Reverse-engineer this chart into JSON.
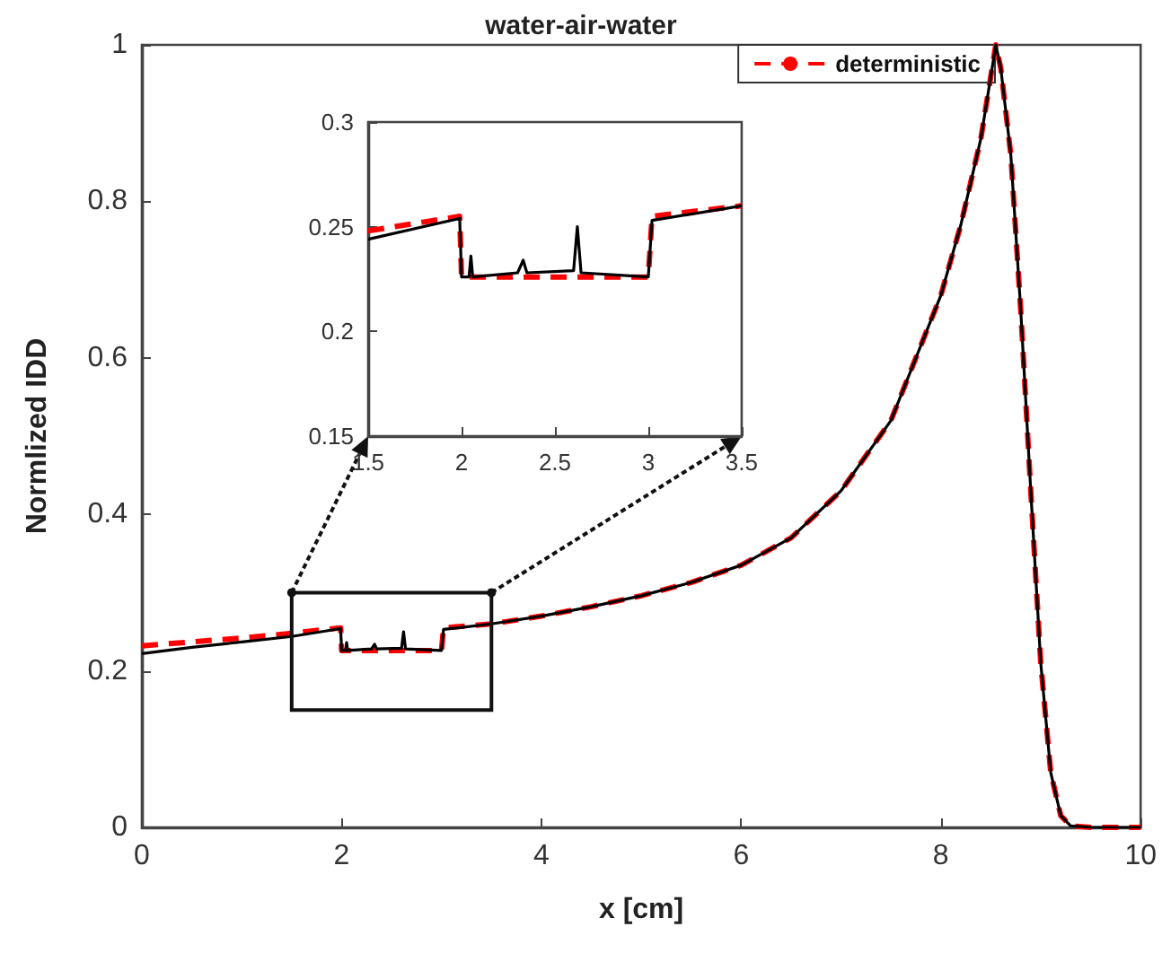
{
  "chart_data": [
    {
      "type": "line",
      "title": "water-air-water",
      "xlabel": "x [cm]",
      "ylabel": "Normlized IDD",
      "xlim": [
        0,
        10
      ],
      "xticks": [
        0,
        2,
        4,
        6,
        8,
        10
      ],
      "ylim": [
        0,
        1
      ],
      "yticks": [
        0,
        0.2,
        0.4,
        0.6,
        0.8,
        1
      ],
      "grid": false,
      "legend": "top right",
      "series": [
        {
          "color": "#000000",
          "line_style": "solid",
          "x": [
            0,
            0.5,
            1,
            1.5,
            1.99,
            2.0,
            2.04,
            2.05,
            2.06,
            2.3,
            2.33,
            2.35,
            2.6,
            2.62,
            2.64,
            3.0,
            3.02,
            3.5,
            4,
            4.5,
            5,
            5.5,
            6,
            6.5,
            7,
            7.5,
            8,
            8.2,
            8.4,
            8.5,
            8.55,
            8.6,
            8.7,
            8.8,
            8.9,
            9.0,
            9.1,
            9.2,
            9.3,
            9.5,
            10
          ],
          "values": [
            0.222,
            0.23,
            0.237,
            0.244,
            0.254,
            0.226,
            0.226,
            0.236,
            0.226,
            0.228,
            0.234,
            0.228,
            0.229,
            0.25,
            0.228,
            0.226,
            0.253,
            0.26,
            0.27,
            0.282,
            0.296,
            0.313,
            0.335,
            0.37,
            0.43,
            0.52,
            0.68,
            0.77,
            0.88,
            0.96,
            1.0,
            0.97,
            0.86,
            0.66,
            0.43,
            0.21,
            0.07,
            0.015,
            0.002,
            0,
            0
          ]
        },
        {
          "name": "deterministic",
          "color": "#ff0000",
          "line_style": "dashed",
          "x": [
            0,
            0.5,
            1,
            1.5,
            1.99,
            2.0,
            3.0,
            3.02,
            3.5,
            4,
            4.5,
            5,
            5.5,
            6,
            6.5,
            7,
            7.5,
            8,
            8.2,
            8.4,
            8.5,
            8.55,
            8.6,
            8.7,
            8.8,
            8.9,
            9.0,
            9.1,
            9.2,
            9.3,
            9.5,
            10
          ],
          "values": [
            0.232,
            0.237,
            0.242,
            0.248,
            0.255,
            0.226,
            0.226,
            0.255,
            0.26,
            0.27,
            0.282,
            0.296,
            0.313,
            0.335,
            0.37,
            0.43,
            0.52,
            0.68,
            0.77,
            0.88,
            0.96,
            1.0,
            0.97,
            0.86,
            0.66,
            0.43,
            0.21,
            0.07,
            0.015,
            0.002,
            0,
            0
          ]
        }
      ]
    },
    {
      "type": "line",
      "xlim": [
        1.5,
        3.5
      ],
      "xticks": [
        1.5,
        2,
        2.5,
        3,
        3.5
      ],
      "ylim": [
        0.15,
        0.3
      ],
      "yticks": [
        0.15,
        0.2,
        0.25,
        0.3
      ],
      "grid": false,
      "series": [
        {
          "color": "#000000",
          "line_style": "solid",
          "x": [
            1.5,
            1.99,
            2.0,
            2.04,
            2.05,
            2.06,
            2.3,
            2.33,
            2.35,
            2.6,
            2.62,
            2.64,
            3.0,
            3.02,
            3.5
          ],
          "values": [
            0.244,
            0.254,
            0.226,
            0.226,
            0.236,
            0.226,
            0.228,
            0.234,
            0.228,
            0.229,
            0.25,
            0.228,
            0.226,
            0.253,
            0.26
          ]
        },
        {
          "color": "#ff0000",
          "line_style": "dashed",
          "x": [
            1.5,
            1.99,
            2.0,
            3.0,
            3.02,
            3.5
          ],
          "values": [
            0.248,
            0.255,
            0.226,
            0.226,
            0.255,
            0.26
          ]
        }
      ]
    }
  ]
}
